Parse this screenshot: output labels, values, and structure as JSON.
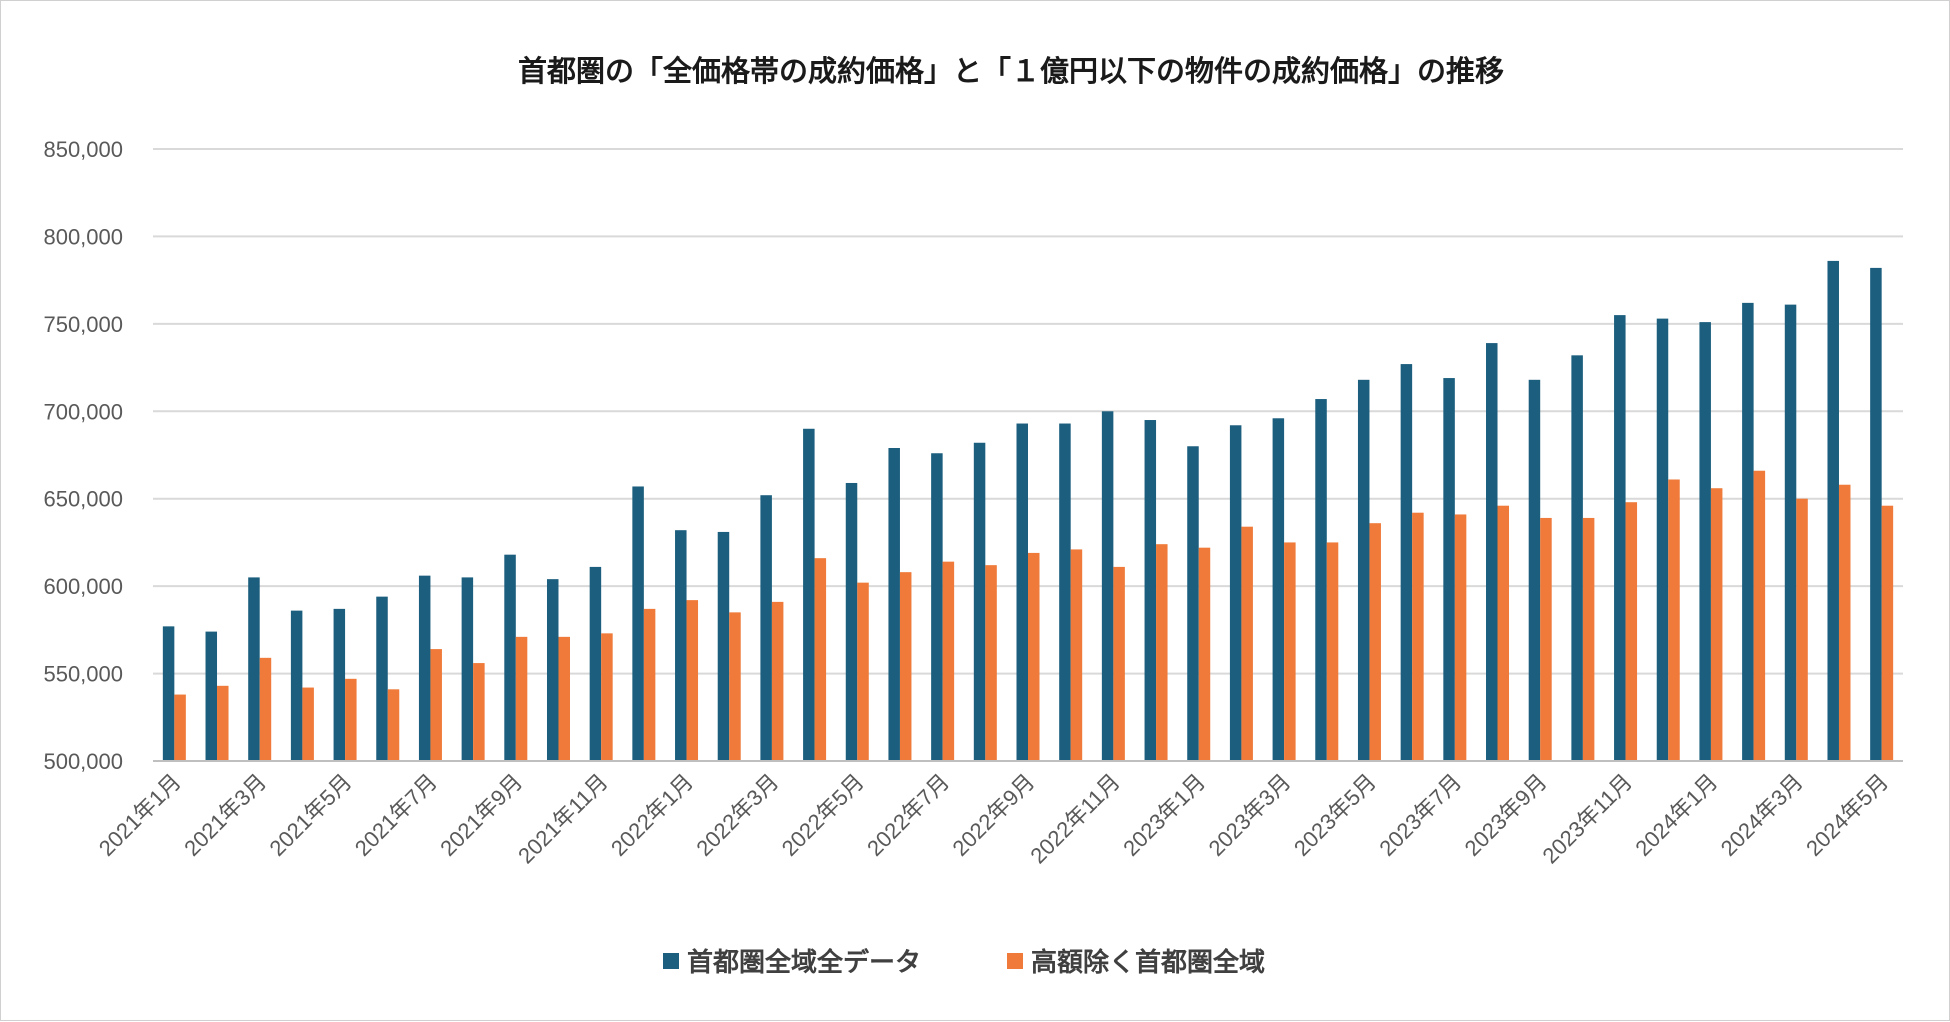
{
  "chart_data": {
    "type": "bar",
    "title": "首都圏の「全価格帯の成約価格」と「１億円以下の物件の成約価格」の推移",
    "xlabel": "",
    "ylabel": "",
    "ylim": [
      500000,
      850000
    ],
    "yticks": [
      500000,
      550000,
      600000,
      650000,
      700000,
      750000,
      800000,
      850000
    ],
    "ytick_labels": [
      "500,000",
      "550,000",
      "600,000",
      "650,000",
      "700,000",
      "750,000",
      "800,000",
      "850,000"
    ],
    "grid": "horizontal",
    "legend_position": "bottom",
    "categories": [
      "2021年1月",
      "2021年2月",
      "2021年3月",
      "2021年4月",
      "2021年5月",
      "2021年6月",
      "2021年7月",
      "2021年8月",
      "2021年9月",
      "2021年10月",
      "2021年11月",
      "2021年12月",
      "2022年1月",
      "2022年2月",
      "2022年3月",
      "2022年4月",
      "2022年5月",
      "2022年6月",
      "2022年7月",
      "2022年8月",
      "2022年9月",
      "2022年10月",
      "2022年11月",
      "2022年12月",
      "2023年1月",
      "2023年2月",
      "2023年3月",
      "2023年4月",
      "2023年5月",
      "2023年6月",
      "2023年7月",
      "2023年8月",
      "2023年9月",
      "2023年10月",
      "2023年11月",
      "2023年12月",
      "2024年1月",
      "2024年2月",
      "2024年3月",
      "2024年4月",
      "2024年5月"
    ],
    "xtick_labels": [
      "2021年1月",
      "2021年3月",
      "2021年5月",
      "2021年7月",
      "2021年9月",
      "2021年11月",
      "2022年1月",
      "2022年3月",
      "2022年5月",
      "2022年7月",
      "2022年9月",
      "2022年11月",
      "2023年1月",
      "2023年3月",
      "2023年5月",
      "2023年7月",
      "2023年9月",
      "2023年11月",
      "2024年1月",
      "2024年3月",
      "2024年5月"
    ],
    "series": [
      {
        "name": "首都圏全域全データ",
        "color": "#1b5e7e",
        "values": [
          577000,
          574000,
          605000,
          586000,
          587000,
          594000,
          606000,
          605000,
          618000,
          604000,
          611000,
          657000,
          632000,
          631000,
          652000,
          690000,
          659000,
          679000,
          676000,
          682000,
          693000,
          693000,
          700000,
          695000,
          680000,
          692000,
          696000,
          707000,
          718000,
          727000,
          719000,
          739000,
          718000,
          732000,
          755000,
          753000,
          751000,
          762000,
          761000,
          786000,
          782000
        ]
      },
      {
        "name": "高額除く首都圏全域",
        "color": "#ef7a39",
        "values": [
          538000,
          543000,
          559000,
          542000,
          547000,
          541000,
          564000,
          556000,
          571000,
          571000,
          573000,
          587000,
          592000,
          585000,
          591000,
          616000,
          602000,
          608000,
          614000,
          612000,
          619000,
          621000,
          611000,
          624000,
          622000,
          634000,
          625000,
          625000,
          636000,
          642000,
          641000,
          646000,
          639000,
          639000,
          648000,
          661000,
          656000,
          666000,
          650000,
          658000,
          646000
        ]
      }
    ]
  }
}
